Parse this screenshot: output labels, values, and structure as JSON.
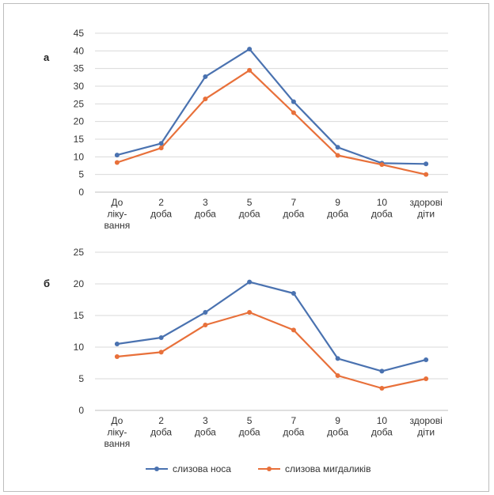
{
  "chart_data": [
    {
      "type": "line",
      "panel_label": "а",
      "categories": [
        [
          "До",
          "ліку-",
          "вання"
        ],
        [
          "2",
          "доба"
        ],
        [
          "3",
          "доба"
        ],
        [
          "5",
          "доба"
        ],
        [
          "7",
          "доба"
        ],
        [
          "9",
          "доба"
        ],
        [
          "10",
          "доба"
        ],
        [
          "здорові",
          "діти"
        ]
      ],
      "ylim": [
        0,
        45
      ],
      "yticks": [
        0,
        5,
        10,
        15,
        20,
        25,
        30,
        35,
        40,
        45
      ],
      "grid": true,
      "series": [
        {
          "name": "слизова носа",
          "color": "#4a72b0",
          "values": [
            10.5,
            13.8,
            32.7,
            40.5,
            25.6,
            12.7,
            8.2,
            8.0
          ]
        },
        {
          "name": "слизова мигдаликів",
          "color": "#e8703a",
          "values": [
            8.4,
            12.5,
            26.4,
            34.5,
            22.5,
            10.4,
            7.8,
            5.0
          ]
        }
      ]
    },
    {
      "type": "line",
      "panel_label": "б",
      "categories": [
        [
          "До",
          "ліку-",
          "вання"
        ],
        [
          "2",
          "доба"
        ],
        [
          "3",
          "доба"
        ],
        [
          "5",
          "доба"
        ],
        [
          "7",
          "доба"
        ],
        [
          "9",
          "доба"
        ],
        [
          "10",
          "доба"
        ],
        [
          "здорові",
          "діти"
        ]
      ],
      "ylim": [
        0,
        25
      ],
      "yticks": [
        0,
        5,
        10,
        15,
        20,
        25
      ],
      "grid": true,
      "series": [
        {
          "name": "слизова носа",
          "color": "#4a72b0",
          "values": [
            10.5,
            11.5,
            15.5,
            20.3,
            18.5,
            8.2,
            6.2,
            8.0
          ]
        },
        {
          "name": "слизова мигдаликів",
          "color": "#e8703a",
          "values": [
            8.5,
            9.2,
            13.5,
            15.5,
            12.7,
            5.5,
            3.5,
            5.0
          ]
        }
      ]
    }
  ],
  "legend": {
    "placement": "bottom",
    "items": [
      {
        "label": "слизова носа",
        "color": "#4a72b0"
      },
      {
        "label": "слизова мигдаликів",
        "color": "#e8703a"
      }
    ]
  }
}
